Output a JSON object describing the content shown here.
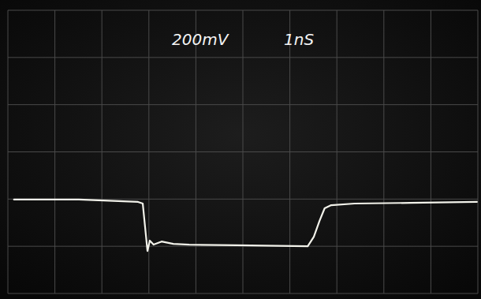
{
  "chart_data": {
    "type": "line",
    "annotations": [
      "200mV",
      "1nS"
    ],
    "x": [
      0.13,
      1.51,
      2.77,
      2.87,
      2.94,
      2.97,
      3.02,
      3.1,
      3.27,
      3.52,
      3.86,
      4.87,
      6.38,
      6.51,
      6.63,
      6.74,
      6.88,
      7.38,
      8.56,
      9.98
    ],
    "values": [
      -202,
      -202,
      -212,
      -219,
      -360,
      -420,
      -376,
      -393,
      -380,
      -390,
      -393,
      -396,
      -400,
      -360,
      -293,
      -239,
      -226,
      -219,
      -216,
      -212
    ],
    "color": "#f2f2ea",
    "xlim": [
      0,
      10
    ],
    "xticks": [
      0,
      1,
      2,
      3,
      4,
      5,
      6,
      7,
      8,
      9,
      10
    ],
    "ylim": [
      -600,
      600
    ],
    "yticks": [
      -600,
      -400,
      -200,
      0,
      200,
      400,
      600
    ],
    "grid": true,
    "tick_labels": false
  }
}
